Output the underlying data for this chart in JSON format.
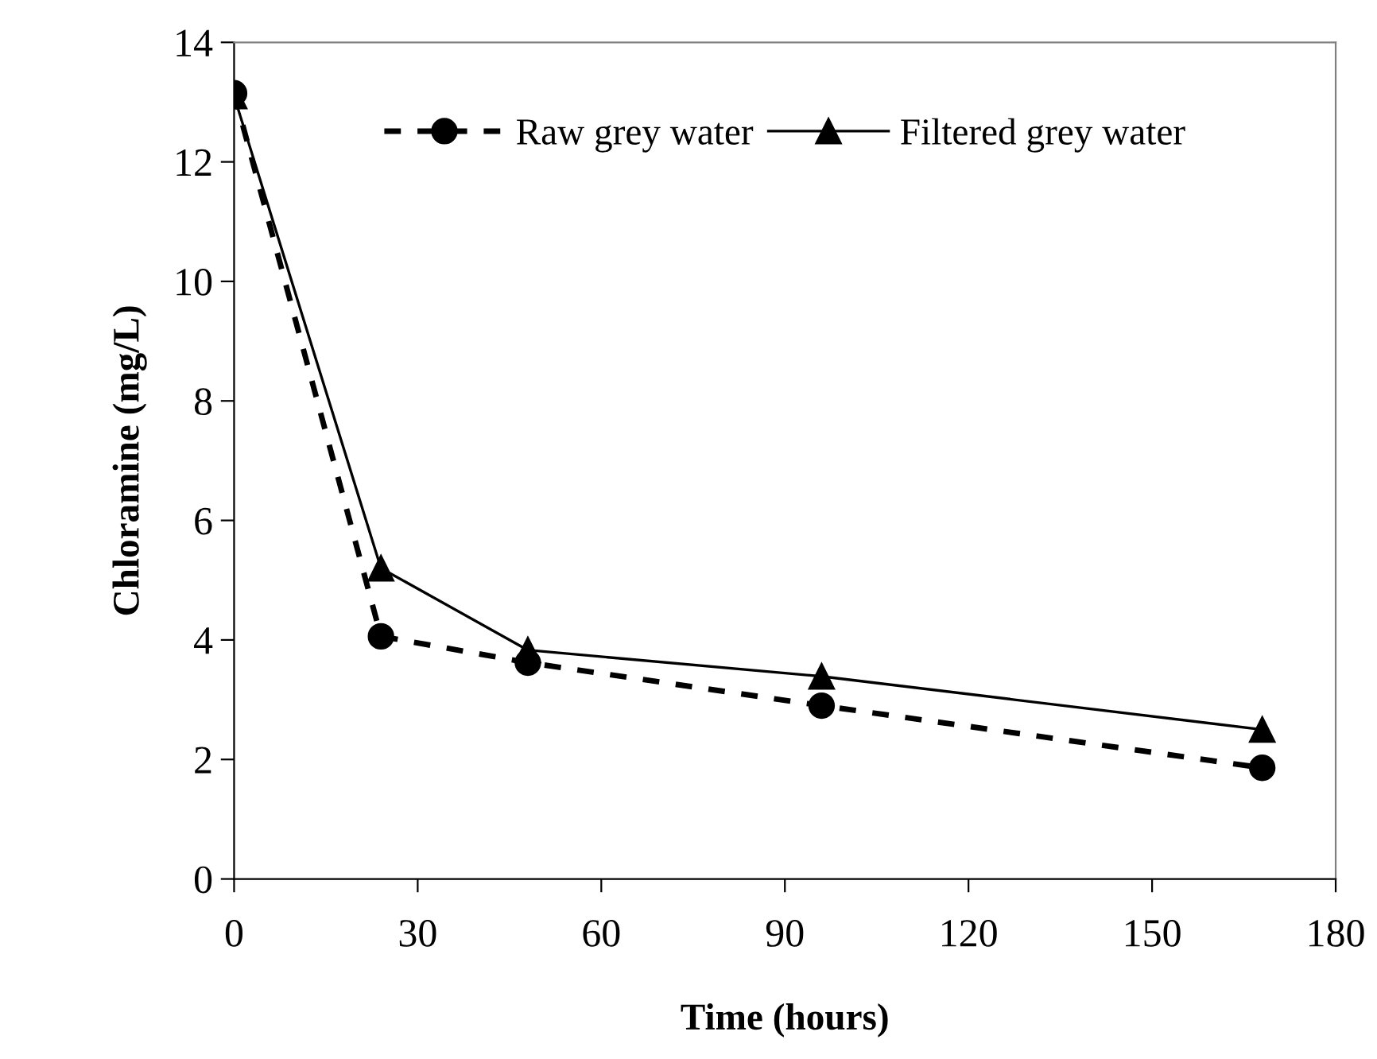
{
  "chart_data": {
    "type": "line",
    "xlabel": "Time (hours)",
    "ylabel": "Chloramine (mg/L)",
    "x": [
      0,
      24,
      48,
      96,
      168
    ],
    "series": [
      {
        "name": "Raw grey water",
        "color": "#000000",
        "marker": "circle",
        "line_style": "dashed",
        "values": [
          13.15,
          4.06,
          3.62,
          2.9,
          1.86
        ]
      },
      {
        "name": "Filtered grey water",
        "color": "#000000",
        "marker": "triangle",
        "line_style": "solid",
        "values": [
          13.1,
          5.2,
          3.83,
          3.39,
          2.5
        ]
      }
    ],
    "xlim": [
      0,
      180
    ],
    "xticks": [
      0,
      30,
      60,
      90,
      120,
      150,
      180
    ],
    "ylim": [
      0,
      14
    ],
    "yticks": [
      0,
      2,
      4,
      6,
      8,
      10,
      12,
      14
    ],
    "grid": false,
    "legend": "top"
  }
}
